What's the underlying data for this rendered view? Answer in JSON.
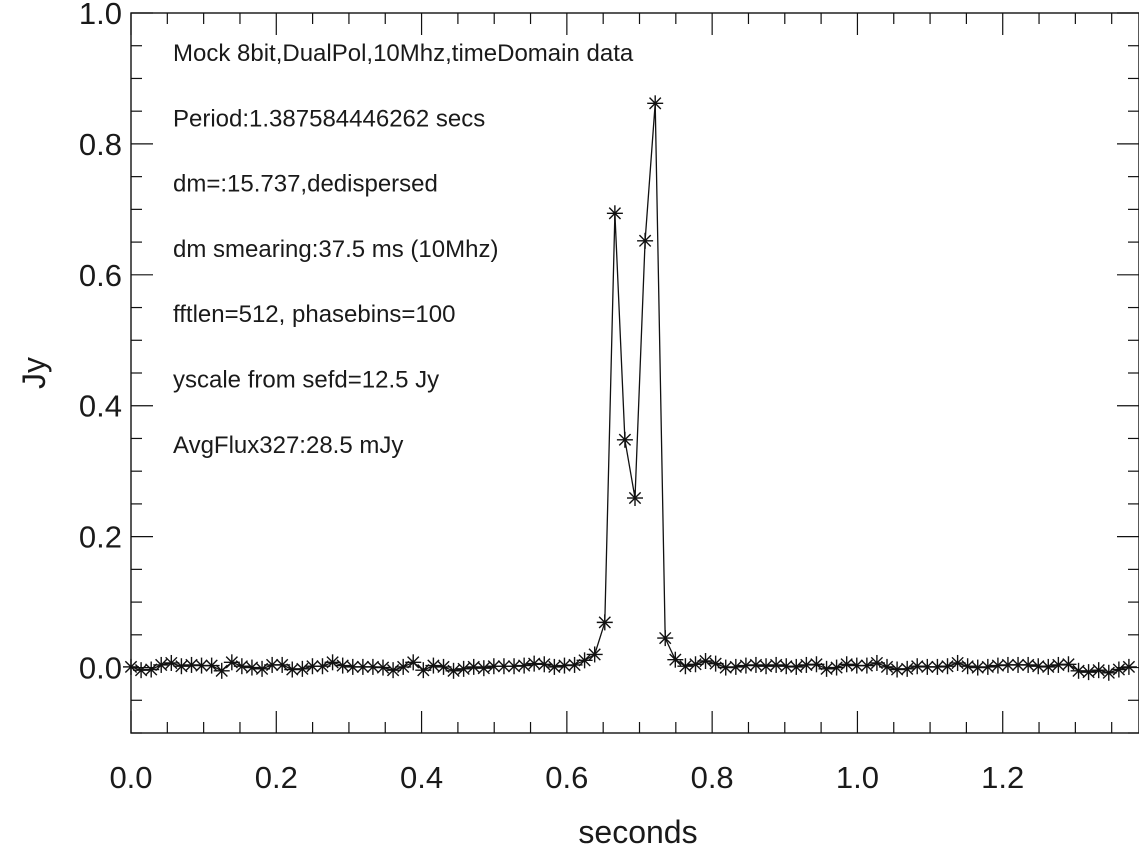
{
  "chart_data": {
    "type": "scatter",
    "xlabel": "seconds",
    "ylabel": "Jy",
    "xlim": [
      0,
      1.3876
    ],
    "ylim": [
      -0.1,
      1.0
    ],
    "x_ticks": [
      "0.0",
      "0.2",
      "0.4",
      "0.6",
      "0.8",
      "1.0",
      "1.2"
    ],
    "y_ticks": [
      "0.0",
      "0.2",
      "0.4",
      "0.6",
      "0.8",
      "1.0"
    ],
    "grid": false,
    "marker": "asterisk",
    "line": true,
    "annotations": [
      "Mock 8bit,DualPol,10Mhz,timeDomain data",
      "Period:1.387584446262 secs",
      "dm=:15.737,dedispersed",
      "dm smearing:37.5 ms (10Mhz)",
      "fftlen=512, phasebins=100",
      "yscale from sefd=12.5 Jy",
      "AvgFlux327:28.5 mJy"
    ],
    "series": [
      {
        "x": [
          0.0,
          0.0139,
          0.0278,
          0.0416,
          0.0555,
          0.0694,
          0.0833,
          0.0971,
          0.111,
          0.1249,
          0.1388,
          0.1526,
          0.1665,
          0.1804,
          0.1943,
          0.2081,
          0.222,
          0.2359,
          0.2498,
          0.2636,
          0.2775,
          0.2914,
          0.3053,
          0.3192,
          0.333,
          0.3469,
          0.3608,
          0.3747,
          0.3885,
          0.4024,
          0.4163,
          0.4302,
          0.444,
          0.4579,
          0.4718,
          0.4857,
          0.4995,
          0.5134,
          0.5273,
          0.5412,
          0.555,
          0.5689,
          0.5828,
          0.5967,
          0.6106,
          0.6244,
          0.6383,
          0.6522,
          0.6661,
          0.6799,
          0.6938,
          0.7077,
          0.7216,
          0.7354,
          0.7493,
          0.7632,
          0.7771,
          0.7909,
          0.8048,
          0.8187,
          0.8326,
          0.8465,
          0.8603,
          0.8742,
          0.8881,
          0.902,
          0.9158,
          0.9297,
          0.9436,
          0.9575,
          0.9713,
          0.9852,
          0.9991,
          1.013,
          1.0268,
          1.0407,
          1.0546,
          1.0685,
          1.0823,
          1.0962,
          1.1101,
          1.124,
          1.1379,
          1.1517,
          1.1656,
          1.1795,
          1.1934,
          1.2072,
          1.2211,
          1.235,
          1.2489,
          1.2627,
          1.2766,
          1.2905,
          1.3044,
          1.3182,
          1.3321,
          1.346,
          1.3599,
          1.3737
        ],
        "y": [
          0.001,
          -0.004,
          -0.003,
          0.004,
          0.007,
          0.002,
          0.004,
          0.003,
          0.003,
          -0.005,
          0.008,
          0.002,
          0.0,
          -0.002,
          0.004,
          0.004,
          -0.003,
          -0.002,
          0.002,
          0.002,
          0.008,
          0.003,
          0.001,
          0.001,
          0.001,
          0.0,
          -0.004,
          0.001,
          0.008,
          -0.004,
          0.003,
          0.001,
          -0.005,
          -0.002,
          0.001,
          -0.001,
          0.002,
          0.002,
          0.002,
          0.003,
          0.006,
          0.005,
          0.001,
          0.003,
          0.004,
          0.011,
          0.02,
          0.069,
          0.694,
          0.348,
          0.259,
          0.652,
          0.862,
          0.045,
          0.012,
          0.002,
          0.005,
          0.01,
          0.006,
          0.0,
          0.001,
          0.003,
          0.004,
          0.002,
          0.004,
          0.002,
          0.001,
          0.004,
          0.005,
          -0.002,
          0.0,
          0.005,
          0.003,
          0.003,
          0.007,
          0.001,
          -0.003,
          -0.002,
          0.002,
          0.001,
          0.001,
          0.002,
          0.007,
          0.002,
          0.0,
          0.001,
          0.003,
          0.004,
          0.004,
          0.004,
          0.002,
          0.001,
          0.004,
          0.005,
          -0.005,
          -0.007,
          -0.004,
          -0.008,
          -0.003,
          0.001
        ]
      }
    ]
  }
}
